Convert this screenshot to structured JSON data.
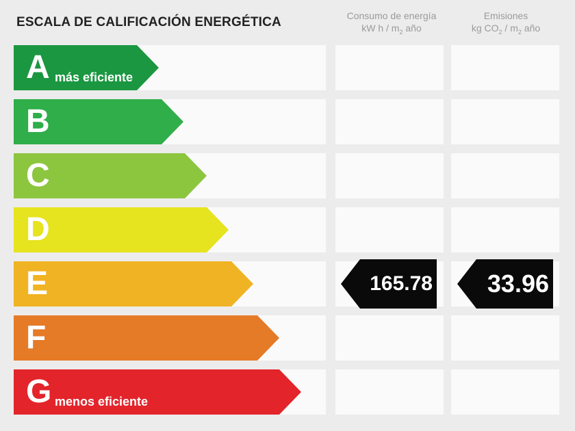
{
  "title": "ESCALA DE CALIFICACIÓN ENERGÉTICA",
  "columns": {
    "consumo": {
      "line1": "Consumo de energía",
      "line2a": "kW h / m",
      "line2sub": "2",
      "line2b": " año"
    },
    "emisiones": {
      "line1": "Emisiones",
      "line2a": "kg CO",
      "line2sub1": "2",
      "line2mid": " / m",
      "line2sub2": "2",
      "line2b": " año"
    }
  },
  "ratings": [
    {
      "letter": "A",
      "label": "más eficiente",
      "color": "#1a9740"
    },
    {
      "letter": "B",
      "label": "",
      "color": "#2fae49"
    },
    {
      "letter": "C",
      "label": "",
      "color": "#8cc63f"
    },
    {
      "letter": "D",
      "label": "",
      "color": "#e6e31f"
    },
    {
      "letter": "E",
      "label": "",
      "color": "#f0b323"
    },
    {
      "letter": "F",
      "label": "",
      "color": "#e57a27"
    },
    {
      "letter": "G",
      "label": "menos eficiente",
      "color": "#e3242b"
    }
  ],
  "current_rating": "E",
  "consumo_value": "165.78",
  "emisiones_value": "33.96"
}
